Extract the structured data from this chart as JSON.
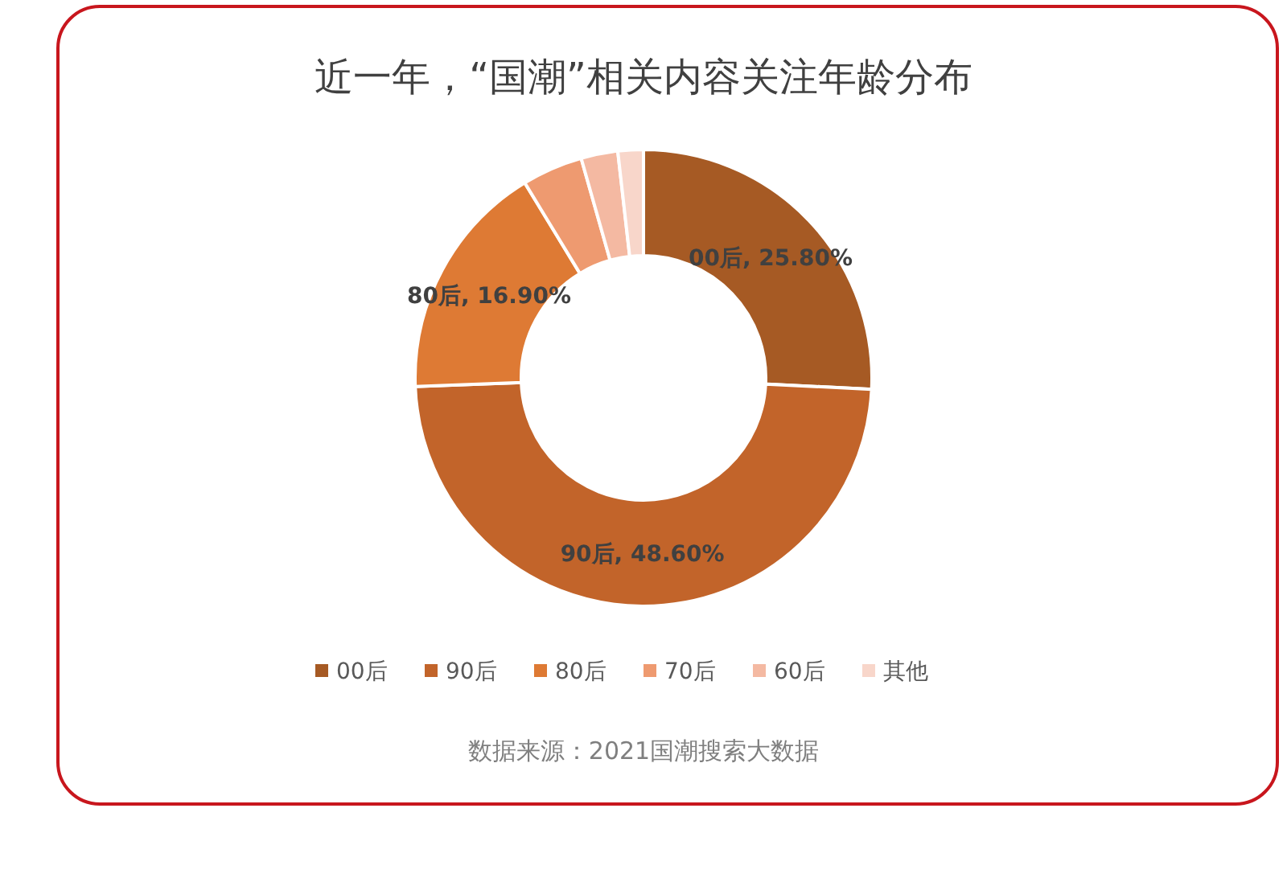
{
  "chart_data": {
    "type": "donut",
    "title": "近一年，“国潮”相关内容关注年龄分布",
    "categories": [
      "00后",
      "90后",
      "80后",
      "70后",
      "60后",
      "其他"
    ],
    "values": [
      25.8,
      48.6,
      16.9,
      4.3,
      2.6,
      1.8
    ],
    "colors": [
      "#a65a24",
      "#c2642a",
      "#de7a34",
      "#ee9a70",
      "#f4b9a2",
      "#f8d6ca"
    ],
    "value_labels": [
      "00后, 25.80%",
      "90后, 48.60%",
      "80后, 16.90%",
      null,
      null,
      null
    ],
    "legend": "bottom",
    "annotations": [
      "数据来源：2021国潮搜索大数据"
    ]
  }
}
